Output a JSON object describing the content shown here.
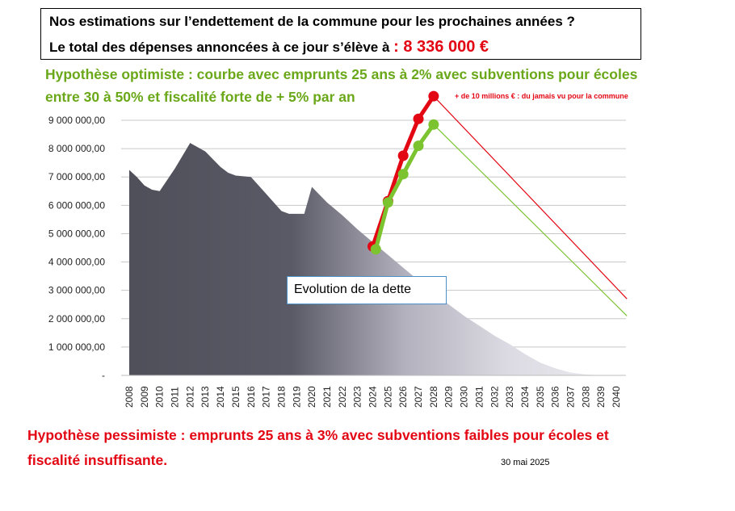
{
  "header": {
    "line1": "Nos estimations sur l’endettement de la commune pour les prochaines années ?",
    "line2_prefix": "Le total des dépenses annoncées à ce jour s’élève à",
    "amount": ": 8 336 000 €"
  },
  "optimistic": {
    "line1": "Hypothèse optimiste : courbe avec emprunts 25 ans à 2% avec subventions pour écoles",
    "line2": "entre 30 à 50% et fiscalité forte de + 5% par an"
  },
  "pessimistic": {
    "line1": "Hypothèse pessimiste : emprunts 25 ans à 3% avec subventions faibles pour écoles et",
    "line2": "fiscalité insuffisante."
  },
  "date_note": "30 mai 2025",
  "annotation_box": "Evolution de la dette",
  "red_note": "+ de 10 millions € : du jamais vu pour la commune",
  "colors": {
    "red": "#e30613",
    "green": "#7cc330",
    "green_text": "#6aa819",
    "area_dark": "#4f4f5a",
    "area_light": "#f1eff4"
  },
  "chart_data": {
    "type": "area",
    "ylim": [
      0,
      9000000
    ],
    "y_ticks": [
      "-",
      "1 000 000,00",
      "2 000 000,00",
      "3 000 000,00",
      "4 000 000,00",
      "5 000 000,00",
      "6 000 000,00",
      "7 000 000,00",
      "8 000 000,00",
      "9 000 000,00"
    ],
    "x_ticks": [
      "2008",
      "2009",
      "2010",
      "2011",
      "2012",
      "2013",
      "2014",
      "2015",
      "2016",
      "2017",
      "2018",
      "2019",
      "2020",
      "2021",
      "2022",
      "2023",
      "2024",
      "2025",
      "2026",
      "2027",
      "2028",
      "2029",
      "2030",
      "2031",
      "2032",
      "2033",
      "2034",
      "2035",
      "2036",
      "2037",
      "2038",
      "2039",
      "2040"
    ],
    "grid": true,
    "area": {
      "x": [
        2008,
        2008.5,
        2009,
        2009.5,
        2010,
        2011,
        2012,
        2012.5,
        2013,
        2014,
        2014.5,
        2015,
        2016,
        2016.5,
        2017,
        2018,
        2018.5,
        2019,
        2019.5,
        2020,
        2021,
        2022,
        2023,
        2024,
        2025,
        2026,
        2027,
        2028,
        2029,
        2030,
        2031,
        2032,
        2033,
        2034,
        2035,
        2036,
        2037,
        2038,
        2039
      ],
      "y": [
        7250000,
        7000000,
        6700000,
        6550000,
        6500000,
        7300000,
        8200000,
        8050000,
        7900000,
        7350000,
        7150000,
        7050000,
        7000000,
        6700000,
        6400000,
        5800000,
        5700000,
        5700000,
        5700000,
        6650000,
        6100000,
        5650000,
        5150000,
        4700000,
        4250000,
        3800000,
        3350000,
        2900000,
        2500000,
        2100000,
        1750000,
        1400000,
        1100000,
        750000,
        450000,
        250000,
        100000,
        30000,
        0
      ]
    },
    "series": [
      {
        "color": "#e30613",
        "x": [
          2024,
          2025,
          2026,
          2027,
          2028
        ],
        "y": [
          4550000,
          6150000,
          7750000,
          9050000,
          9850000
        ],
        "trend_end": {
          "x": 2040.7,
          "y": 2700000
        }
      },
      {
        "color": "#7cc330",
        "x": [
          2024.2,
          2025,
          2026,
          2027,
          2028
        ],
        "y": [
          4450000,
          6100000,
          7100000,
          8100000,
          8850000
        ],
        "trend_end": {
          "x": 2040.7,
          "y": 2100000
        }
      }
    ]
  }
}
